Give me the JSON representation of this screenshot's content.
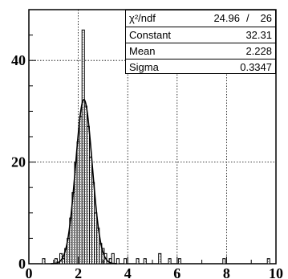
{
  "chart_data": {
    "type": "histogram",
    "title": "",
    "xlabel": "",
    "ylabel": "",
    "xlim": [
      0,
      10
    ],
    "ylim": [
      0,
      50
    ],
    "grid": true,
    "bin_width": 0.1,
    "xticks": [
      "0",
      "2",
      "4",
      "6",
      "8",
      "10"
    ],
    "yticks": [
      "0",
      "20",
      "40"
    ],
    "bins": [
      {
        "x": 0.6,
        "count": 1
      },
      {
        "x": 1.1,
        "count": 1
      },
      {
        "x": 1.3,
        "count": 2
      },
      {
        "x": 1.4,
        "count": 1
      },
      {
        "x": 1.5,
        "count": 3
      },
      {
        "x": 1.6,
        "count": 5
      },
      {
        "x": 1.7,
        "count": 9
      },
      {
        "x": 1.8,
        "count": 14
      },
      {
        "x": 1.9,
        "count": 20
      },
      {
        "x": 2.0,
        "count": 24
      },
      {
        "x": 2.1,
        "count": 29
      },
      {
        "x": 2.2,
        "count": 46
      },
      {
        "x": 2.3,
        "count": 31
      },
      {
        "x": 2.4,
        "count": 27
      },
      {
        "x": 2.5,
        "count": 21
      },
      {
        "x": 2.6,
        "count": 16
      },
      {
        "x": 2.7,
        "count": 10
      },
      {
        "x": 2.8,
        "count": 7
      },
      {
        "x": 2.9,
        "count": 4
      },
      {
        "x": 3.0,
        "count": 3
      },
      {
        "x": 3.1,
        "count": 2
      },
      {
        "x": 3.3,
        "count": 1
      },
      {
        "x": 3.4,
        "count": 2
      },
      {
        "x": 3.6,
        "count": 1
      },
      {
        "x": 3.9,
        "count": 1
      },
      {
        "x": 4.4,
        "count": 1
      },
      {
        "x": 4.7,
        "count": 1
      },
      {
        "x": 5.3,
        "count": 2
      },
      {
        "x": 5.7,
        "count": 1
      },
      {
        "x": 6.1,
        "count": 1
      },
      {
        "x": 7.9,
        "count": 1
      },
      {
        "x": 9.7,
        "count": 1
      }
    ],
    "fit": {
      "function": "gaussian",
      "constant": 32.31,
      "mean": 2.228,
      "sigma": 0.3347
    },
    "stats": {
      "chi2_label": "χ²/ndf",
      "chi2_value": "24.96",
      "slash": "/",
      "ndf": "26",
      "constant_label": "Constant",
      "constant_value": "32.31",
      "mean_label": "Mean",
      "mean_value": "2.228",
      "sigma_label": "Sigma",
      "sigma_value": "0.3347"
    }
  }
}
